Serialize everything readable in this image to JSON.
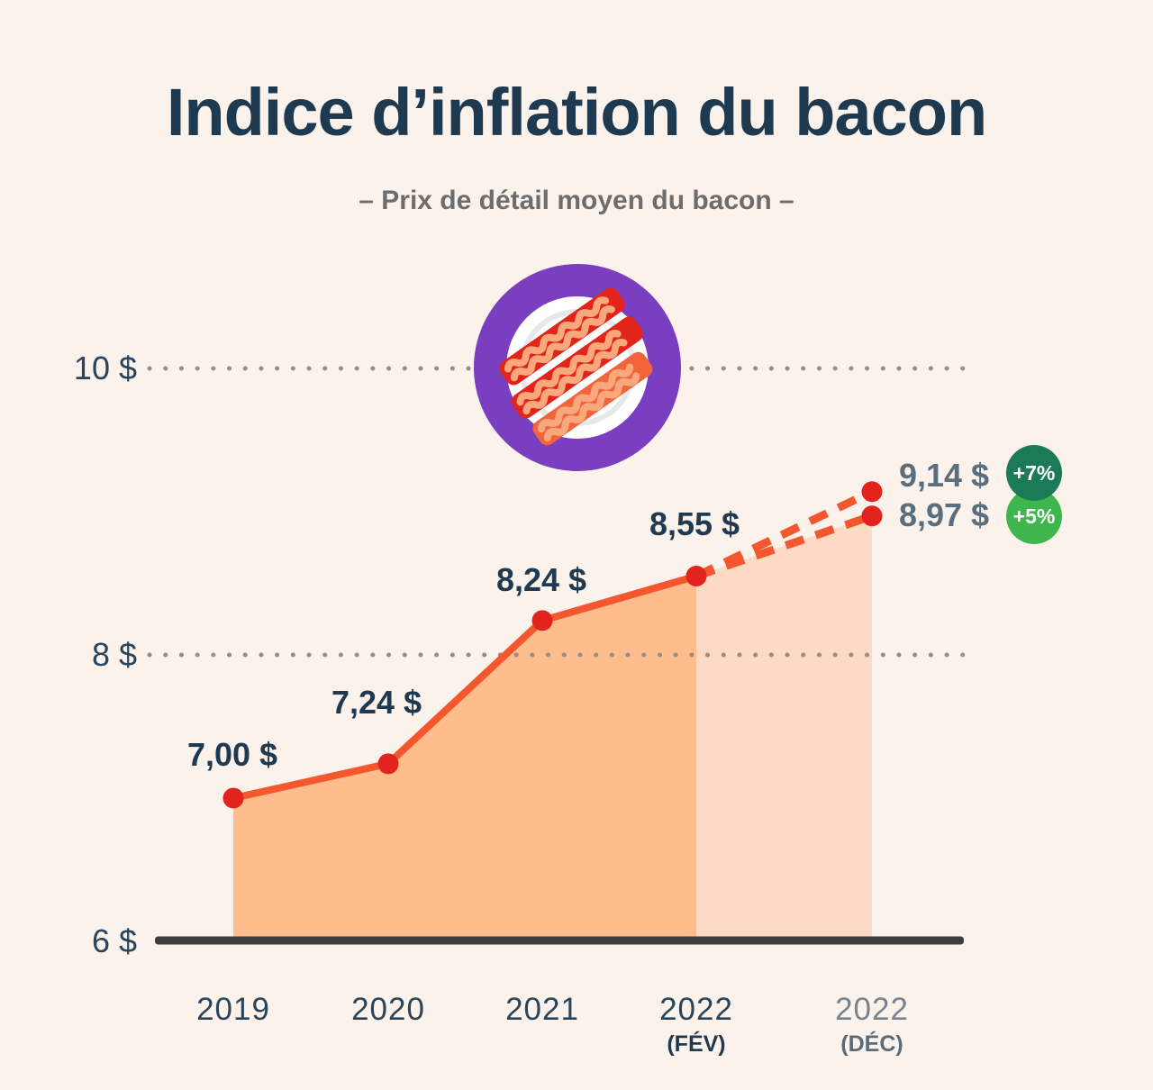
{
  "header": {
    "title": "Indice d’inflation du bacon",
    "subtitle": "– Prix de détail moyen du bacon –"
  },
  "icons": {
    "bacon_plate": "plate-with-bacon-strips-in-purple-ring"
  },
  "chart_data": {
    "type": "line",
    "title": "Indice d’inflation du bacon",
    "subtitle": "– Prix de détail moyen du bacon –",
    "unit": "$ CAD",
    "legend": "none",
    "grid": "dotted-horizontal",
    "x_categories": [
      "2019",
      "2020",
      "2021",
      "2022 (FÉV)",
      "2022 (DÉC)"
    ],
    "x_tick_labels": [
      {
        "year": "2019",
        "sub": ""
      },
      {
        "year": "2020",
        "sub": ""
      },
      {
        "year": "2021",
        "sub": ""
      },
      {
        "year": "2022",
        "sub": "(FÉV)"
      },
      {
        "year": "2022",
        "sub": "(DÉC)"
      }
    ],
    "y_ticks": [
      {
        "value": 10,
        "label": "10 $"
      },
      {
        "value": 8,
        "label": "8 $"
      },
      {
        "value": 6,
        "label": "6 $"
      }
    ],
    "ylim": [
      6,
      10.6
    ],
    "series": [
      {
        "name": "prix-reel",
        "line_style": "solid",
        "x_idx": [
          0,
          1,
          2,
          3
        ],
        "values": [
          7.0,
          7.24,
          8.24,
          8.55
        ],
        "point_labels": [
          "7,00 $",
          "7,24 $",
          "8,24 $",
          "8,55 $"
        ]
      },
      {
        "name": "projection-plus-7",
        "line_style": "dashed",
        "x_idx": [
          3,
          4
        ],
        "values": [
          8.55,
          9.14
        ],
        "end_label": "9,14 $",
        "badge": "+7%",
        "badge_color": "#1B7A58"
      },
      {
        "name": "projection-plus-5",
        "line_style": "dashed",
        "x_idx": [
          3,
          4
        ],
        "values": [
          8.55,
          8.97
        ],
        "end_label": "8,97 $",
        "badge": "+5%",
        "badge_color": "#3EB54D"
      }
    ],
    "colors": {
      "background": "#FBF2EC",
      "line": "#F4572E",
      "point": "#E2231E",
      "area_solid": "#FFBC8C",
      "area_projection": "#FDDAC5",
      "grid_dot": "#978D87",
      "axis": "#3E3E3E",
      "title_text": "#1E3A50",
      "subtitle_text": "#6D6D6D",
      "value_label": "#1F3A50",
      "projection_label": "#5A6E7D",
      "icon_ring": "#7A3EC1",
      "badge_dark_green": "#1B7A58",
      "badge_light_green": "#3EB54D"
    }
  }
}
